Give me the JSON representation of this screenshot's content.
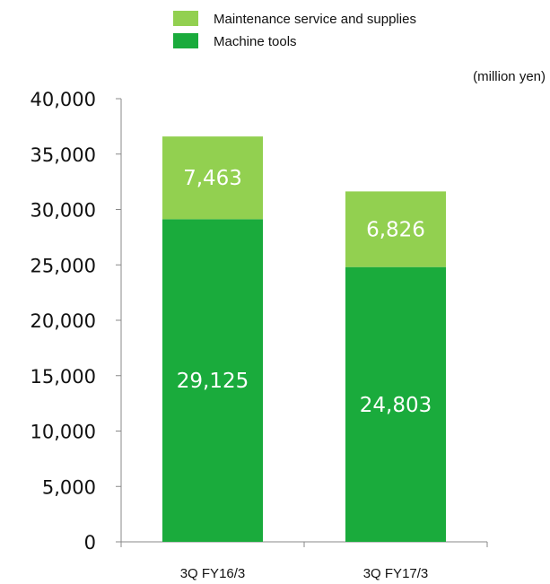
{
  "chart_data": {
    "type": "bar",
    "stacked": true,
    "categories": [
      "3Q FY16/3",
      "3Q FY17/3"
    ],
    "series": [
      {
        "name": "Machine tools",
        "values": [
          29125,
          24803
        ],
        "labels": [
          "29,125",
          "24,803"
        ],
        "color": "#1aab3c"
      },
      {
        "name": "Maintenance service and supplies",
        "values": [
          7463,
          6826
        ],
        "labels": [
          "7,463",
          "6,826"
        ],
        "color": "#92d050"
      }
    ],
    "legend_order": [
      1,
      0
    ],
    "legend_position": "top-right",
    "unit_label": "(million yen)",
    "ylim": [
      0,
      40000
    ],
    "yticks": [
      0,
      5000,
      10000,
      15000,
      20000,
      25000,
      30000,
      35000,
      40000
    ],
    "ytick_labels": [
      "0",
      "5,000",
      "10,000",
      "15,000",
      "20,000",
      "25,000",
      "30,000",
      "35,000",
      "40,000"
    ],
    "grid": false
  }
}
